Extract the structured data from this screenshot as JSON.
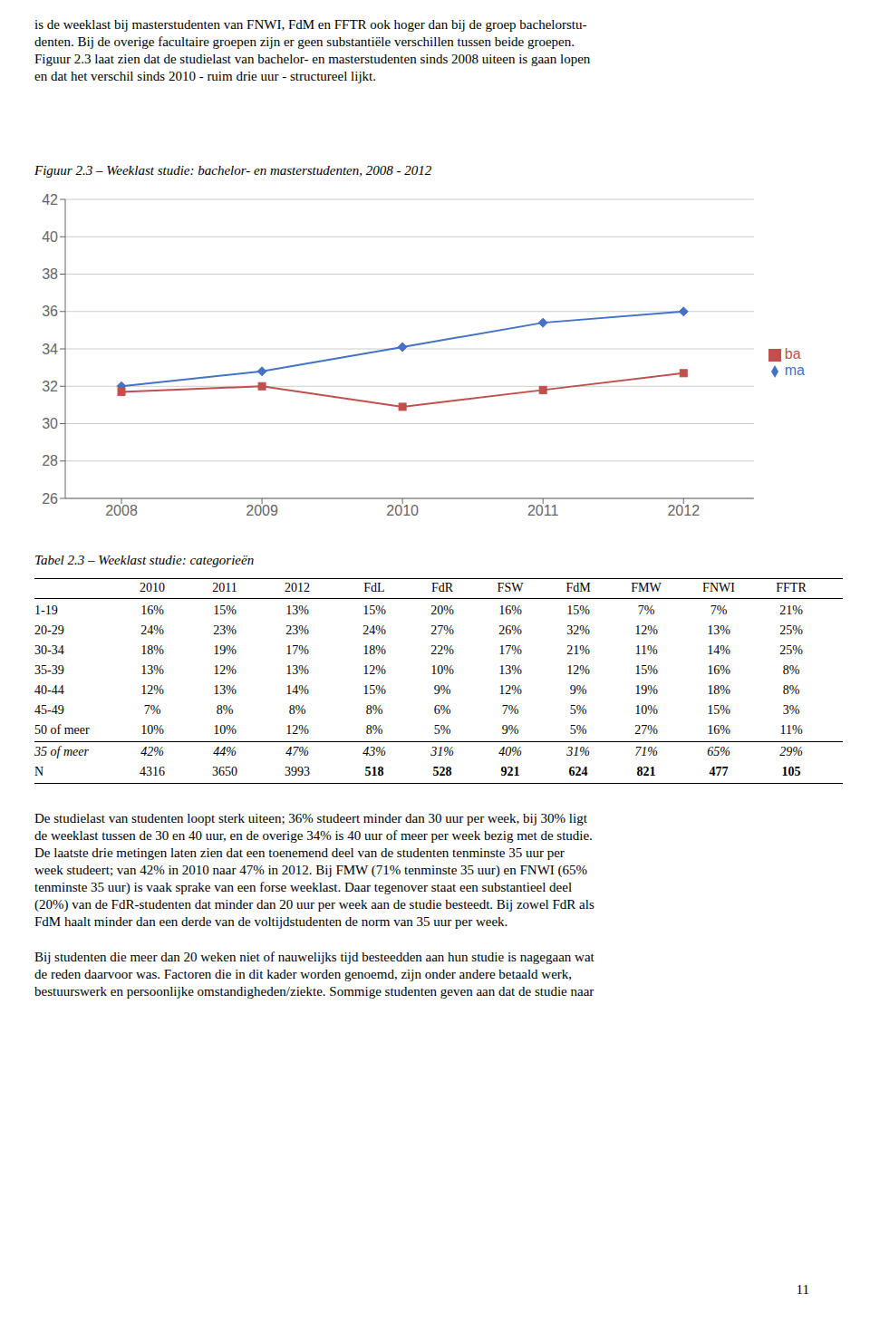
{
  "chart_data": [
    {
      "type": "line",
      "title": "Figuur 2.3 – Weeklast studie: bachelor- en masterstudenten, 2008 - 2012",
      "x": [
        2008,
        2009,
        2010,
        2011,
        2012
      ],
      "xlim": [
        2007.6,
        2012.5
      ],
      "xticks": [
        2008,
        2009,
        2010,
        2011,
        2012
      ],
      "ylim": [
        26,
        42
      ],
      "yticks": [
        26,
        28,
        30,
        32,
        34,
        36,
        38,
        40,
        42
      ],
      "grid": true,
      "legend": "right",
      "series": [
        {
          "name": "ma",
          "color": "#4472C4",
          "marker": "diamond",
          "values": [
            32.0,
            32.8,
            34.1,
            35.4,
            36.0
          ]
        },
        {
          "name": "ba",
          "color": "#C0504D",
          "marker": "square",
          "values": [
            31.7,
            32.0,
            30.9,
            31.8,
            32.7
          ]
        }
      ],
      "annotations": [
        [
          "is de weeklast bij masterstudenten van FNWI, FdM en FFTR ook hoger dan bij de groep bachelorstu-",
          "denten. Bij de overige facultaire groepen zijn er geen substantiële verschillen tussen beide groepen.",
          "Figuur 2.3 laat zien dat de studielast van bachelor- en masterstudenten sinds 2008 uiteen is gaan lopen",
          "en dat het verschil sinds 2010 - ruim drie uur - structureel lijkt."
        ],
        [
          "De studielast van studenten loopt sterk uiteen; 36% studeert minder dan 30 uur per week, bij 30% ligt",
          "de weeklast tussen de 30 en 40 uur, en de overige 34% is 40 uur of meer per week bezig met de studie.",
          "De laatste drie metingen laten zien dat een toenemend deel van de studenten tenminste 35 uur per",
          "week studeert; van 42% in 2010 naar 47% in 2012. Bij FMW (71% tenminste 35 uur) en FNWI (65%",
          "tenminste 35 uur) is vaak sprake van een forse weeklast. Daar tegenover staat een substantieel deel",
          "(20%) van de FdR-studenten dat minder dan 20 uur per week aan de studie besteedt. Bij zowel FdR als",
          "FdM haalt minder dan een derde van de voltijdstudenten de norm van 35 uur per week."
        ],
        [
          "Bij studenten die meer dan 20 weken niet of nauwelijks tijd besteedden aan hun studie is nagegaan wat",
          "de reden daarvoor was. Factoren die in dit kader worden genoemd, zijn onder andere betaald werk,",
          "bestuurswerk en persoonlijke omstandigheden/ziekte. Sommige studenten geven aan dat de studie naar"
        ],
        [
          "11"
        ]
      ]
    },
    {
      "type": "table",
      "title": "Tabel 2.3 – Weeklast studie: categorieën",
      "columns": [
        "2010",
        "2011",
        "2012",
        "FdL",
        "FdR",
        "FSW",
        "FdM",
        "FMW",
        "FNWI",
        "FFTR"
      ],
      "rows": [
        [
          "1-19",
          "16%",
          "15%",
          "13%",
          "15%",
          "20%",
          "16%",
          "15%",
          "7%",
          "7%",
          "21%"
        ],
        [
          "20-29",
          "24%",
          "23%",
          "23%",
          "24%",
          "27%",
          "26%",
          "32%",
          "12%",
          "13%",
          "25%"
        ],
        [
          "30-34",
          "18%",
          "19%",
          "17%",
          "18%",
          "22%",
          "17%",
          "21%",
          "11%",
          "14%",
          "25%"
        ],
        [
          "35-39",
          "13%",
          "12%",
          "13%",
          "12%",
          "10%",
          "13%",
          "12%",
          "15%",
          "16%",
          "8%"
        ],
        [
          "40-44",
          "12%",
          "13%",
          "14%",
          "15%",
          "9%",
          "12%",
          "9%",
          "19%",
          "18%",
          "8%"
        ],
        [
          "45-49",
          "7%",
          "8%",
          "8%",
          "8%",
          "6%",
          "7%",
          "5%",
          "10%",
          "15%",
          "3%"
        ],
        [
          "50 of meer",
          "10%",
          "10%",
          "12%",
          "8%",
          "5%",
          "9%",
          "5%",
          "27%",
          "16%",
          "11%"
        ],
        [
          "35 of meer",
          "42%",
          "44%",
          "47%",
          "43%",
          "31%",
          "40%",
          "31%",
          "71%",
          "65%",
          "29%"
        ],
        [
          "N",
          "4316",
          "3650",
          "3993",
          "518",
          "528",
          "921",
          "624",
          "821",
          "477",
          "105"
        ]
      ]
    }
  ]
}
